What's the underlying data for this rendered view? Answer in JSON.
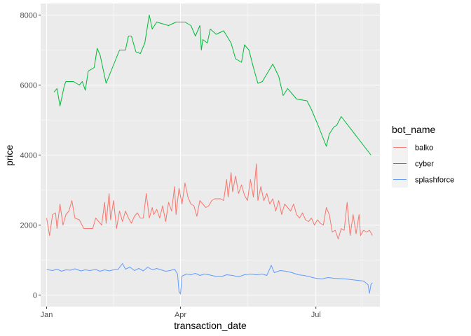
{
  "chart_data": {
    "type": "line",
    "xlabel": "transaction_date",
    "ylabel": "price",
    "x_ticks": [
      "Jan",
      "Apr",
      "Jul"
    ],
    "y_ticks": [
      0,
      2000,
      4000,
      6000,
      8000
    ],
    "xlim": [
      "2021-12-28",
      "2022-08-13"
    ],
    "ylim": [
      -330,
      8330
    ],
    "grid": true,
    "legend": {
      "title": "bot_name",
      "position": "right"
    },
    "series": [
      {
        "name": "balko",
        "color": "#F8766D",
        "points": [
          [
            "2022-01-01",
            2200
          ],
          [
            "2022-01-03",
            1700
          ],
          [
            "2022-01-05",
            2300
          ],
          [
            "2022-01-07",
            2350
          ],
          [
            "2022-01-08",
            1900
          ],
          [
            "2022-01-10",
            2600
          ],
          [
            "2022-01-12",
            2000
          ],
          [
            "2022-01-14",
            2300
          ],
          [
            "2022-01-16",
            2400
          ],
          [
            "2022-01-18",
            2700
          ],
          [
            "2022-01-20",
            2200
          ],
          [
            "2022-01-23",
            2150
          ],
          [
            "2022-01-26",
            1900
          ],
          [
            "2022-01-29",
            1900
          ],
          [
            "2022-02-01",
            1900
          ],
          [
            "2022-02-03",
            2200
          ],
          [
            "2022-02-05",
            2100
          ],
          [
            "2022-02-07",
            2000
          ],
          [
            "2022-02-09",
            2650
          ],
          [
            "2022-02-10",
            2050
          ],
          [
            "2022-02-12",
            2900
          ],
          [
            "2022-02-13",
            2150
          ],
          [
            "2022-02-15",
            2700
          ],
          [
            "2022-02-17",
            1900
          ],
          [
            "2022-02-19",
            2400
          ],
          [
            "2022-02-21",
            2100
          ],
          [
            "2022-02-23",
            2400
          ],
          [
            "2022-02-25",
            2200
          ],
          [
            "2022-02-27",
            2050
          ],
          [
            "2022-03-01",
            2250
          ],
          [
            "2022-03-03",
            2350
          ],
          [
            "2022-03-05",
            2200
          ],
          [
            "2022-03-07",
            2200
          ],
          [
            "2022-03-09",
            2900
          ],
          [
            "2022-03-11",
            2200
          ],
          [
            "2022-03-13",
            2500
          ],
          [
            "2022-03-14",
            2300
          ],
          [
            "2022-03-16",
            2450
          ],
          [
            "2022-03-18",
            2200
          ],
          [
            "2022-03-20",
            2550
          ],
          [
            "2022-03-22",
            2100
          ],
          [
            "2022-03-24",
            2650
          ],
          [
            "2022-03-26",
            2400
          ],
          [
            "2022-03-28",
            3100
          ],
          [
            "2022-03-29",
            2300
          ],
          [
            "2022-03-31",
            3050
          ],
          [
            "2022-04-02",
            2600
          ],
          [
            "2022-04-04",
            3200
          ],
          [
            "2022-04-06",
            2800
          ],
          [
            "2022-04-08",
            2600
          ],
          [
            "2022-04-10",
            2550
          ],
          [
            "2022-04-12",
            2250
          ],
          [
            "2022-04-14",
            2700
          ],
          [
            "2022-04-16",
            2600
          ],
          [
            "2022-04-18",
            2500
          ],
          [
            "2022-04-20",
            2550
          ],
          [
            "2022-04-22",
            2700
          ],
          [
            "2022-04-24",
            2750
          ],
          [
            "2022-04-26",
            2750
          ],
          [
            "2022-04-28",
            2750
          ],
          [
            "2022-04-30",
            2700
          ],
          [
            "2022-05-02",
            3300
          ],
          [
            "2022-05-03",
            2800
          ],
          [
            "2022-05-05",
            3500
          ],
          [
            "2022-05-06",
            2950
          ],
          [
            "2022-05-08",
            3400
          ],
          [
            "2022-05-10",
            2900
          ],
          [
            "2022-05-12",
            3150
          ],
          [
            "2022-05-14",
            2850
          ],
          [
            "2022-05-16",
            2700
          ],
          [
            "2022-05-18",
            3300
          ],
          [
            "2022-05-20",
            2800
          ],
          [
            "2022-05-22",
            3750
          ],
          [
            "2022-05-23",
            2700
          ],
          [
            "2022-05-25",
            3100
          ],
          [
            "2022-05-27",
            2700
          ],
          [
            "2022-05-29",
            2900
          ],
          [
            "2022-05-31",
            2600
          ],
          [
            "2022-06-02",
            2750
          ],
          [
            "2022-06-04",
            2400
          ],
          [
            "2022-06-06",
            2700
          ],
          [
            "2022-06-08",
            2300
          ],
          [
            "2022-06-10",
            2600
          ],
          [
            "2022-06-12",
            2500
          ],
          [
            "2022-06-14",
            2400
          ],
          [
            "2022-06-16",
            2600
          ],
          [
            "2022-06-18",
            2300
          ],
          [
            "2022-06-20",
            2200
          ],
          [
            "2022-06-22",
            2350
          ],
          [
            "2022-06-24",
            2150
          ],
          [
            "2022-06-26",
            2100
          ],
          [
            "2022-06-28",
            2200
          ],
          [
            "2022-06-30",
            2000
          ],
          [
            "2022-07-02",
            2150
          ],
          [
            "2022-07-04",
            2050
          ],
          [
            "2022-07-06",
            2000
          ],
          [
            "2022-07-08",
            2500
          ],
          [
            "2022-07-10",
            2300
          ],
          [
            "2022-07-12",
            1800
          ],
          [
            "2022-07-14",
            1850
          ],
          [
            "2022-07-16",
            1600
          ],
          [
            "2022-07-18",
            1900
          ],
          [
            "2022-07-20",
            1850
          ],
          [
            "2022-07-22",
            2650
          ],
          [
            "2022-07-24",
            1700
          ],
          [
            "2022-07-26",
            2300
          ],
          [
            "2022-07-28",
            1750
          ],
          [
            "2022-07-30",
            2300
          ],
          [
            "2022-07-31",
            1700
          ],
          [
            "2022-08-02",
            1850
          ],
          [
            "2022-08-04",
            1800
          ],
          [
            "2022-08-06",
            1850
          ],
          [
            "2022-08-08",
            1700
          ]
        ]
      },
      {
        "name": "cyber",
        "color": "#00BA38",
        "points": [
          [
            "2022-01-06",
            5800
          ],
          [
            "2022-01-08",
            5900
          ],
          [
            "2022-01-10",
            5400
          ],
          [
            "2022-01-13",
            6000
          ],
          [
            "2022-01-14",
            6100
          ],
          [
            "2022-01-19",
            6100
          ],
          [
            "2022-01-23",
            6000
          ],
          [
            "2022-01-25",
            6100
          ],
          [
            "2022-01-27",
            5850
          ],
          [
            "2022-01-29",
            6400
          ],
          [
            "2022-02-02",
            6500
          ],
          [
            "2022-02-04",
            7050
          ],
          [
            "2022-02-06",
            6850
          ],
          [
            "2022-02-10",
            6050
          ],
          [
            "2022-02-19",
            7000
          ],
          [
            "2022-02-23",
            7000
          ],
          [
            "2022-02-25",
            7400
          ],
          [
            "2022-02-27",
            7400
          ],
          [
            "2022-03-02",
            6950
          ],
          [
            "2022-03-05",
            6900
          ],
          [
            "2022-03-08",
            7200
          ],
          [
            "2022-03-11",
            8000
          ],
          [
            "2022-03-13",
            7600
          ],
          [
            "2022-03-16",
            7800
          ],
          [
            "2022-03-20",
            7750
          ],
          [
            "2022-03-24",
            7700
          ],
          [
            "2022-03-29",
            7800
          ],
          [
            "2022-04-04",
            7800
          ],
          [
            "2022-04-08",
            7700
          ],
          [
            "2022-04-11",
            7400
          ],
          [
            "2022-04-14",
            7700
          ],
          [
            "2022-04-15",
            7000
          ],
          [
            "2022-04-16",
            7300
          ],
          [
            "2022-04-19",
            7200
          ],
          [
            "2022-04-21",
            7600
          ],
          [
            "2022-04-25",
            7450
          ],
          [
            "2022-04-30",
            7550
          ],
          [
            "2022-05-05",
            7200
          ],
          [
            "2022-05-08",
            6750
          ],
          [
            "2022-05-12",
            6650
          ],
          [
            "2022-05-14",
            7150
          ],
          [
            "2022-05-17",
            7000
          ],
          [
            "2022-05-20",
            6500
          ],
          [
            "2022-05-23",
            6050
          ],
          [
            "2022-05-26",
            6100
          ],
          [
            "2022-06-02",
            6600
          ],
          [
            "2022-06-06",
            6250
          ],
          [
            "2022-06-09",
            5700
          ],
          [
            "2022-06-12",
            5900
          ],
          [
            "2022-06-15",
            5750
          ],
          [
            "2022-06-18",
            5600
          ],
          [
            "2022-06-25",
            5550
          ],
          [
            "2022-06-28",
            5300
          ],
          [
            "2022-07-02",
            4900
          ],
          [
            "2022-07-08",
            4250
          ],
          [
            "2022-07-10",
            4600
          ],
          [
            "2022-07-13",
            4800
          ],
          [
            "2022-07-15",
            4850
          ],
          [
            "2022-07-18",
            5100
          ],
          [
            "2022-08-07",
            4000
          ]
        ]
      },
      {
        "name": "splashforce",
        "color": "#619CFF",
        "points": [
          [
            "2022-01-01",
            730
          ],
          [
            "2022-01-05",
            700
          ],
          [
            "2022-01-08",
            740
          ],
          [
            "2022-01-11",
            680
          ],
          [
            "2022-01-14",
            720
          ],
          [
            "2022-01-17",
            710
          ],
          [
            "2022-01-20",
            750
          ],
          [
            "2022-01-24",
            690
          ],
          [
            "2022-01-27",
            720
          ],
          [
            "2022-01-30",
            700
          ],
          [
            "2022-02-03",
            730
          ],
          [
            "2022-02-06",
            680
          ],
          [
            "2022-02-09",
            720
          ],
          [
            "2022-02-12",
            690
          ],
          [
            "2022-02-15",
            720
          ],
          [
            "2022-02-18",
            730
          ],
          [
            "2022-02-21",
            900
          ],
          [
            "2022-02-23",
            740
          ],
          [
            "2022-02-26",
            800
          ],
          [
            "2022-03-01",
            700
          ],
          [
            "2022-03-04",
            760
          ],
          [
            "2022-03-07",
            690
          ],
          [
            "2022-03-10",
            800
          ],
          [
            "2022-03-13",
            720
          ],
          [
            "2022-03-16",
            760
          ],
          [
            "2022-03-19",
            720
          ],
          [
            "2022-03-22",
            680
          ],
          [
            "2022-03-25",
            700
          ],
          [
            "2022-03-28",
            740
          ],
          [
            "2022-03-30",
            600
          ],
          [
            "2022-03-31",
            100
          ],
          [
            "2022-04-01",
            30
          ],
          [
            "2022-04-02",
            540
          ],
          [
            "2022-04-05",
            600
          ],
          [
            "2022-04-08",
            580
          ],
          [
            "2022-04-11",
            620
          ],
          [
            "2022-04-14",
            560
          ],
          [
            "2022-04-17",
            600
          ],
          [
            "2022-04-20",
            580
          ],
          [
            "2022-04-24",
            540
          ],
          [
            "2022-04-28",
            520
          ],
          [
            "2022-05-02",
            580
          ],
          [
            "2022-05-06",
            560
          ],
          [
            "2022-05-10",
            520
          ],
          [
            "2022-05-14",
            580
          ],
          [
            "2022-05-18",
            600
          ],
          [
            "2022-05-22",
            580
          ],
          [
            "2022-05-26",
            600
          ],
          [
            "2022-05-29",
            560
          ],
          [
            "2022-06-01",
            850
          ],
          [
            "2022-06-03",
            640
          ],
          [
            "2022-06-07",
            700
          ],
          [
            "2022-06-11",
            680
          ],
          [
            "2022-06-15",
            640
          ],
          [
            "2022-06-19",
            580
          ],
          [
            "2022-06-23",
            560
          ],
          [
            "2022-06-27",
            520
          ],
          [
            "2022-07-01",
            480
          ],
          [
            "2022-07-05",
            460
          ],
          [
            "2022-07-09",
            500
          ],
          [
            "2022-07-13",
            480
          ],
          [
            "2022-07-17",
            470
          ],
          [
            "2022-07-21",
            460
          ],
          [
            "2022-07-25",
            440
          ],
          [
            "2022-07-29",
            420
          ],
          [
            "2022-08-02",
            400
          ],
          [
            "2022-08-05",
            300
          ],
          [
            "2022-08-06",
            50
          ],
          [
            "2022-08-07",
            300
          ],
          [
            "2022-08-08",
            350
          ]
        ]
      }
    ]
  }
}
